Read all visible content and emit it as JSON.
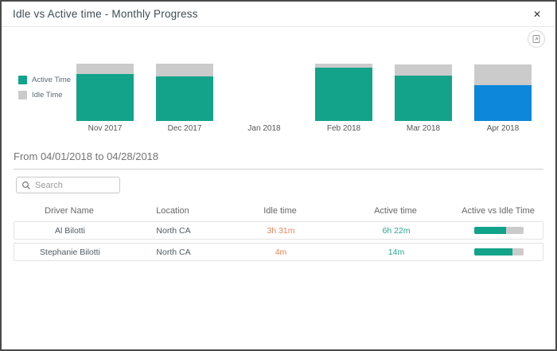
{
  "dialog": {
    "title": "Idle vs Active time - Monthly Progress",
    "close_icon": "✕"
  },
  "colors": {
    "active_teal": "#12a38a",
    "idle_gray": "#cbcbcb",
    "selected_blue": "#0d87da",
    "idle_value_orange": "#e8845c",
    "active_value_teal": "#2aa78c"
  },
  "chart_data": {
    "type": "bar",
    "stacked": true,
    "title": "Idle vs Active time - Monthly Progress",
    "categories": [
      "Nov 2017",
      "Dec 2017",
      "Jan 2018",
      "Feb 2018",
      "Mar 2018",
      "Apr 2018"
    ],
    "series": [
      {
        "name": "Active Time",
        "color": "#12a38a",
        "values": [
          59,
          56,
          0,
          67,
          57,
          45
        ]
      },
      {
        "name": "Idle Time",
        "color": "#cbcbcb",
        "values": [
          13,
          16,
          0,
          5,
          14,
          26
        ]
      }
    ],
    "value_unit": "relative bar height (px), axes hidden",
    "highlighted_category": "Apr 2018",
    "highlight_color": "#0d87da",
    "legend_position": "left",
    "xlabel": "",
    "ylabel": ""
  },
  "range": {
    "label": "From 04/01/2018 to 04/28/2018"
  },
  "search": {
    "placeholder": "Search"
  },
  "table": {
    "columns": [
      "Driver Name",
      "Location",
      "Idle time",
      "Active time",
      "Active vs Idle Time"
    ],
    "rows": [
      {
        "driver": "Al Bilotti",
        "location": "North CA",
        "idle": "3h 31m",
        "active": "6h 22m",
        "active_pct": 64
      },
      {
        "driver": "Stephanie Bilotti",
        "location": "North CA",
        "idle": "4m",
        "active": "14m",
        "active_pct": 78
      }
    ]
  }
}
